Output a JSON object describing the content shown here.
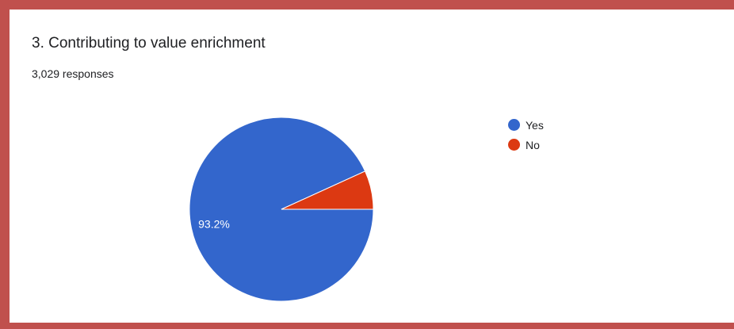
{
  "question": {
    "title": "3. Contributing to value enrichment",
    "responses": "3,029 responses"
  },
  "chart_data": {
    "type": "pie",
    "title": "3. Contributing to value enrichment",
    "categories": [
      "Yes",
      "No"
    ],
    "values": [
      93.2,
      6.8
    ],
    "data_labels": [
      "93.2%",
      ""
    ],
    "colors": [
      "#3366cc",
      "#dc3912"
    ],
    "legend_position": "right"
  }
}
